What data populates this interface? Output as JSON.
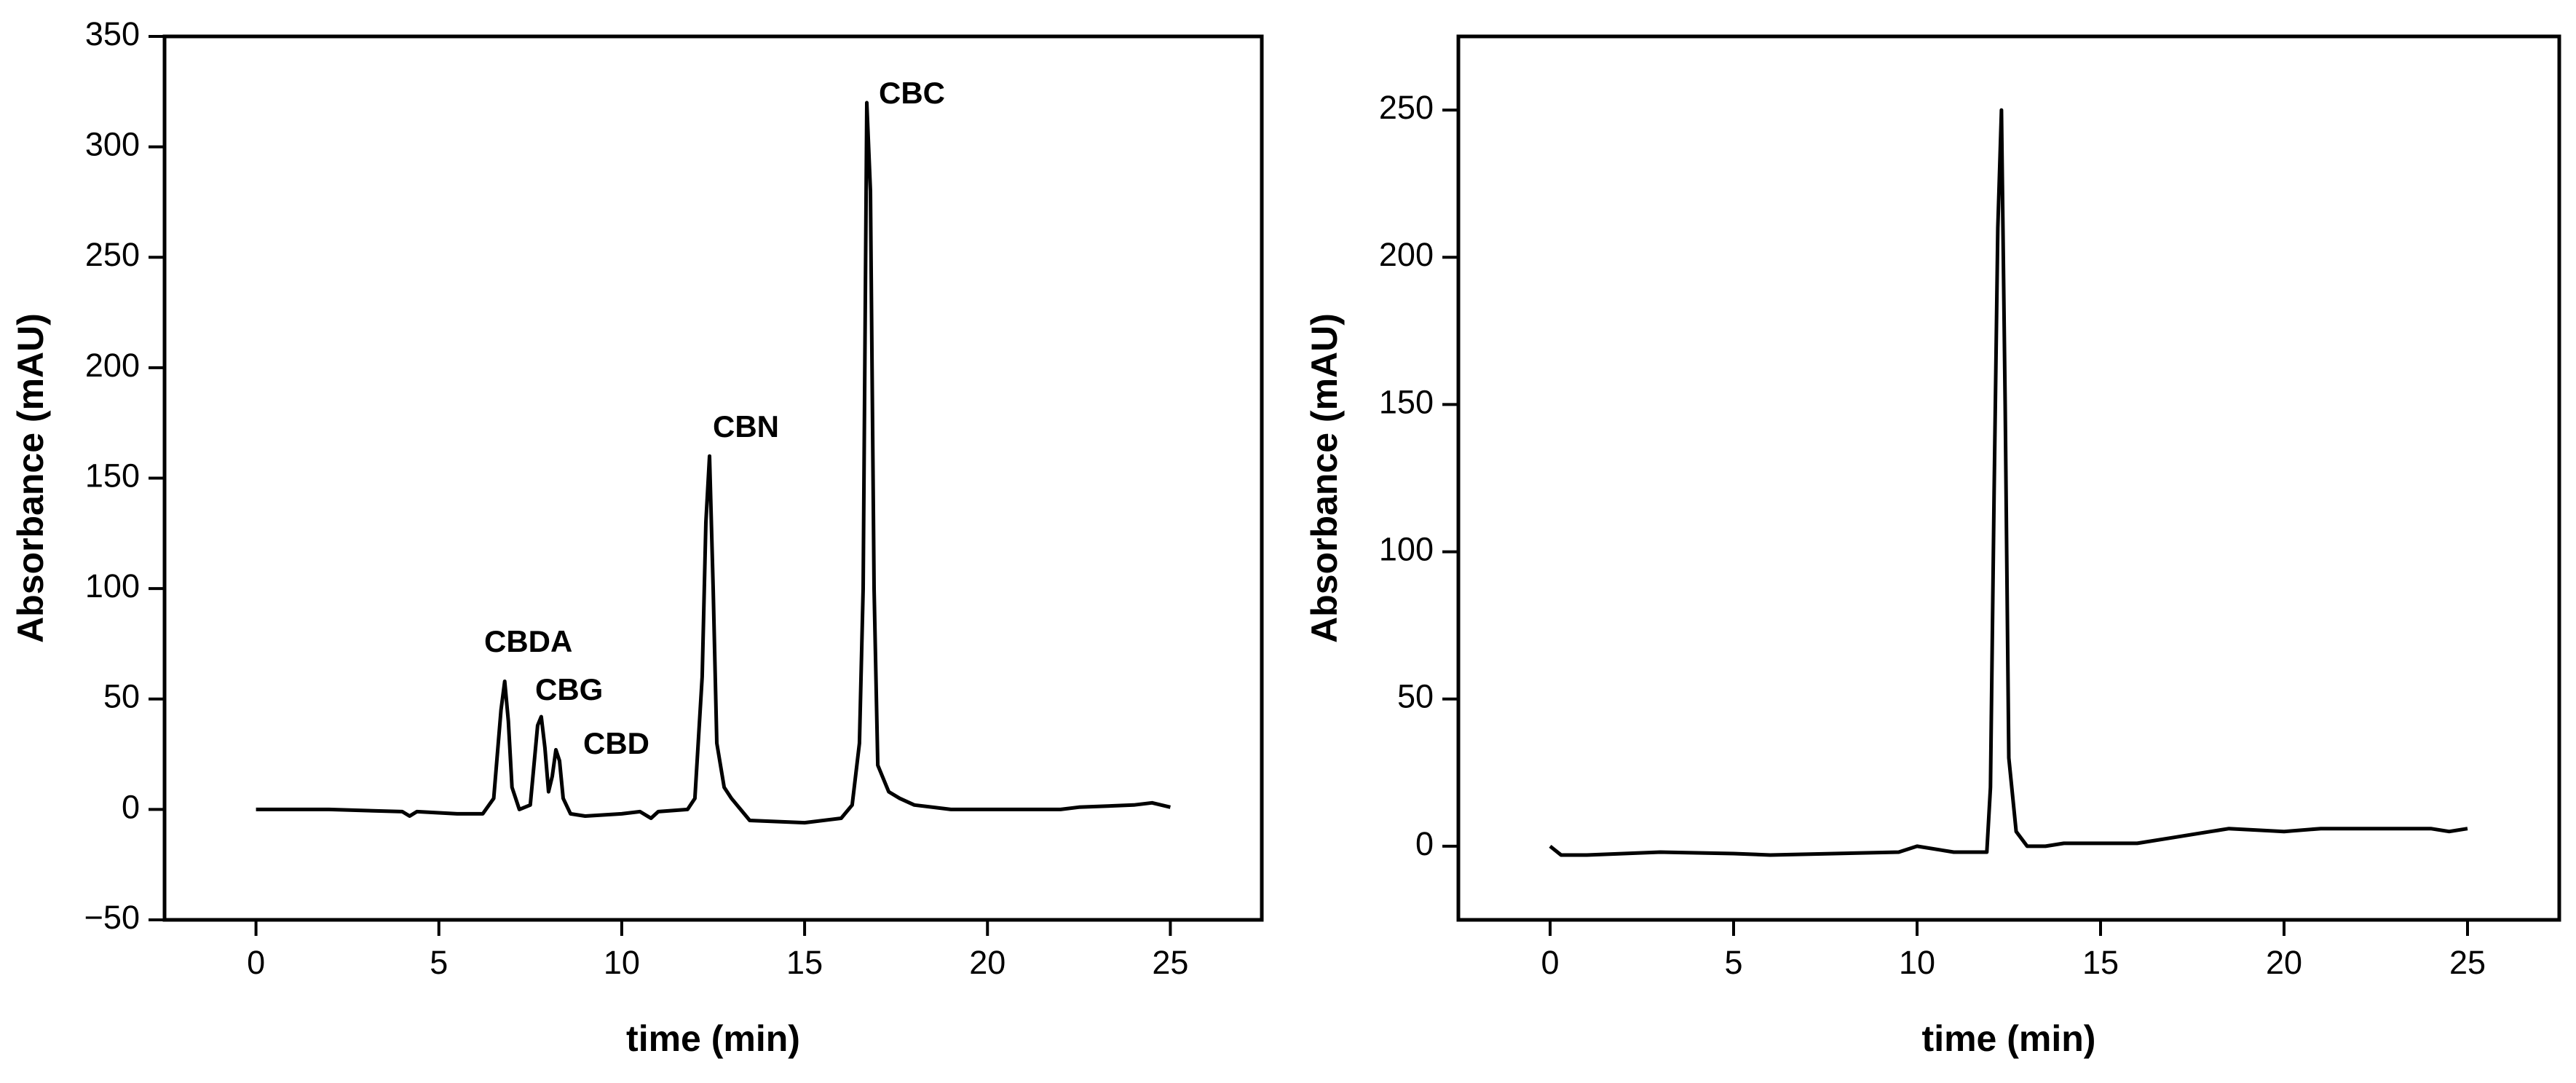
{
  "chart_data": [
    {
      "type": "line",
      "xlabel": "time (min)",
      "ylabel": "Absorbance (mAU)",
      "color": "#000000",
      "xlim": [
        -2.5,
        27.5
      ],
      "ylim": [
        -50,
        350
      ],
      "xticks": [
        0,
        5,
        10,
        15,
        20,
        25
      ],
      "yticks": [
        {
          "value": -50,
          "label": "−50"
        },
        0,
        50,
        100,
        150,
        200,
        250,
        300,
        350
      ],
      "x": [
        0,
        2,
        4,
        4.2,
        4.4,
        5.5,
        6.2,
        6.5,
        6.7,
        6.8,
        6.9,
        7.0,
        7.2,
        7.5,
        7.7,
        7.8,
        7.9,
        8.0,
        8.1,
        8.2,
        8.3,
        8.4,
        8.6,
        9,
        10,
        10.5,
        10.8,
        11,
        11.8,
        12.0,
        12.2,
        12.3,
        12.4,
        12.5,
        12.6,
        12.8,
        13,
        13.5,
        15,
        16,
        16.3,
        16.5,
        16.6,
        16.7,
        16.8,
        16.9,
        17,
        17.3,
        17.6,
        18,
        19,
        22,
        22.5,
        24,
        24.5,
        25
      ],
      "values": [
        0,
        0,
        -1,
        -3,
        -1,
        -2,
        -2,
        5,
        45,
        58,
        40,
        10,
        0,
        2,
        38,
        42,
        28,
        8,
        15,
        27,
        22,
        5,
        -2,
        -3,
        -2,
        -1,
        -4,
        -1,
        0,
        5,
        60,
        130,
        160,
        100,
        30,
        10,
        5,
        -5,
        -6,
        -4,
        2,
        30,
        100,
        320,
        280,
        100,
        20,
        8,
        5,
        2,
        0,
        0,
        1,
        2,
        3,
        1
      ],
      "annotations": [
        "CBDA",
        "CBG",
        "CBD",
        "CBN",
        "CBC"
      ]
    },
    {
      "type": "line",
      "xlabel": "time (min)",
      "ylabel": "Absorbance (mAU)",
      "color": "#000000",
      "xlim": [
        -2.5,
        27.5
      ],
      "ylim": [
        -25,
        275
      ],
      "xticks": [
        0,
        5,
        10,
        15,
        20,
        25
      ],
      "yticks": [
        0,
        50,
        100,
        150,
        200,
        250
      ],
      "x": [
        0,
        0.3,
        1,
        3,
        5,
        6,
        9.5,
        10,
        11,
        11.9,
        12.0,
        12.1,
        12.2,
        12.3,
        12.4,
        12.5,
        12.7,
        13,
        13.5,
        14,
        16,
        17,
        18,
        18.5,
        20,
        21,
        24,
        24.5,
        25
      ],
      "values": [
        0,
        -3,
        -3,
        -2,
        -2.5,
        -3,
        -2,
        0,
        -2,
        -2,
        20,
        120,
        210,
        250,
        150,
        30,
        5,
        0,
        0,
        1,
        1,
        3,
        5,
        6,
        5,
        6,
        6,
        5,
        6
      ]
    }
  ]
}
